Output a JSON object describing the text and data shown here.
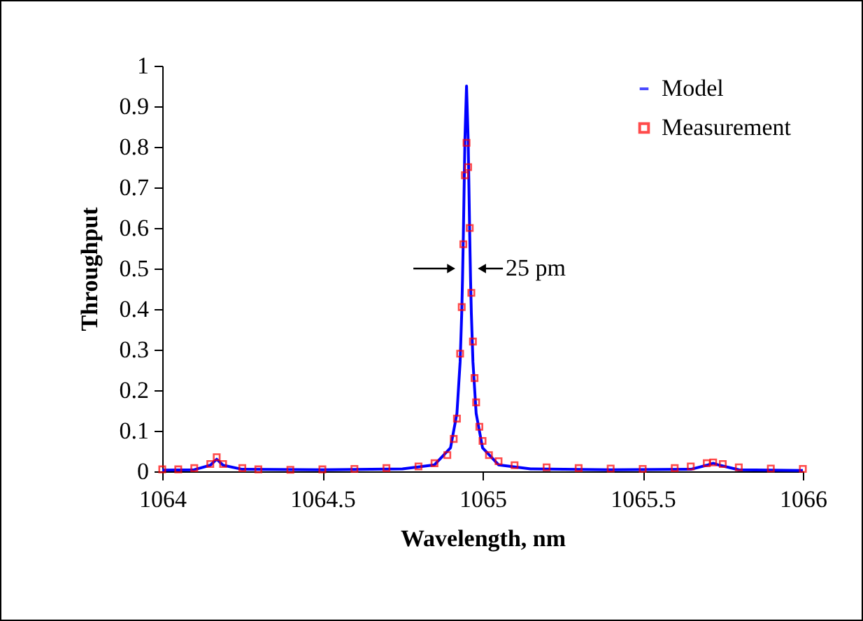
{
  "chart_data": {
    "type": "line",
    "xlabel": "Wavelength, nm",
    "ylabel": "Throughput",
    "xlim": [
      1064,
      1066
    ],
    "xticks": [
      1064,
      1064.5,
      1065,
      1065.5,
      1066
    ],
    "ylim": [
      0,
      1
    ],
    "yticks": [
      0,
      0.1,
      0.2,
      0.3,
      0.4,
      0.5,
      0.6,
      0.7,
      0.8,
      0.9,
      1
    ],
    "grid": false,
    "legend": "top right",
    "annotations": [
      {
        "text": "25 pm",
        "x": 1064.95,
        "y": 0.5
      }
    ],
    "series": [
      {
        "name": "Model",
        "color": "#0000ff",
        "line_style": "solid",
        "x": [
          1064,
          1064.1,
          1064.15,
          1064.17,
          1064.19,
          1064.25,
          1064.5,
          1064.75,
          1064.85,
          1064.9,
          1064.92,
          1064.93,
          1064.935,
          1064.9375,
          1064.94,
          1064.945,
          1064.95,
          1064.955,
          1064.96,
          1064.9625,
          1064.965,
          1064.97,
          1064.98,
          1065,
          1065.05,
          1065.15,
          1065.4,
          1065.65,
          1065.7,
          1065.72,
          1065.74,
          1065.8,
          1066
        ],
        "values": [
          0.003,
          0.004,
          0.015,
          0.03,
          0.015,
          0.005,
          0.004,
          0.006,
          0.016,
          0.058,
          0.143,
          0.27,
          0.39,
          0.475,
          0.58,
          0.82,
          0.95,
          0.82,
          0.58,
          0.475,
          0.39,
          0.27,
          0.143,
          0.058,
          0.016,
          0.006,
          0.004,
          0.005,
          0.015,
          0.02,
          0.015,
          0.004,
          0.002
        ]
      },
      {
        "name": "Measurement",
        "type": "scatter",
        "color": "#ff0000",
        "marker": "square",
        "x": [
          1064,
          1064.05,
          1064.1,
          1064.15,
          1064.17,
          1064.19,
          1064.25,
          1064.3,
          1064.4,
          1064.5,
          1064.6,
          1064.7,
          1064.8,
          1064.85,
          1064.89,
          1064.91,
          1064.92,
          1064.93,
          1064.935,
          1064.94,
          1064.945,
          1064.95,
          1064.955,
          1064.96,
          1064.965,
          1064.97,
          1064.975,
          1064.98,
          1064.99,
          1065,
          1065.02,
          1065.05,
          1065.1,
          1065.2,
          1065.3,
          1065.4,
          1065.5,
          1065.6,
          1065.65,
          1065.7,
          1065.72,
          1065.75,
          1065.8,
          1065.9,
          1066
        ],
        "values": [
          0.005,
          0.005,
          0.008,
          0.018,
          0.035,
          0.018,
          0.008,
          0.005,
          0.004,
          0.005,
          0.006,
          0.008,
          0.012,
          0.02,
          0.04,
          0.08,
          0.13,
          0.29,
          0.405,
          0.56,
          0.73,
          0.81,
          0.75,
          0.6,
          0.44,
          0.32,
          0.23,
          0.17,
          0.11,
          0.075,
          0.04,
          0.025,
          0.015,
          0.01,
          0.008,
          0.007,
          0.006,
          0.008,
          0.012,
          0.02,
          0.022,
          0.018,
          0.01,
          0.007,
          0.006
        ]
      }
    ]
  }
}
